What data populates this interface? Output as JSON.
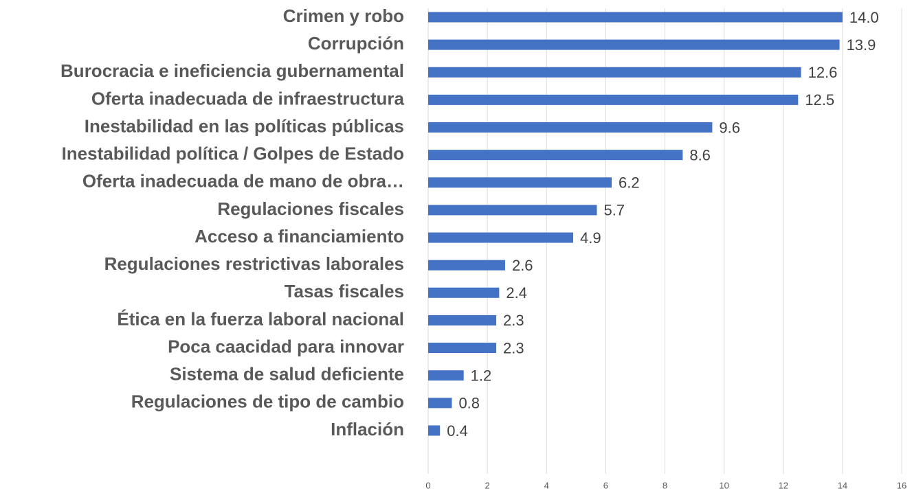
{
  "chart_data": {
    "type": "bar",
    "orientation": "horizontal",
    "categories": [
      "Crimen y robo",
      "Corrupción",
      "Burocracia e ineficiencia gubernamental",
      "Oferta inadecuada de infraestructura",
      "Inestabilidad en las políticas públicas",
      "Inestabilidad política / Golpes de Estado",
      "Oferta inadecuada de mano de obra…",
      "Regulaciones fiscales",
      "Acceso a financiamiento",
      "Regulaciones restrictivas laborales",
      "Tasas fiscales",
      "Ética en la fuerza laboral nacional",
      "Poca caacidad para innovar",
      "Sistema de salud deficiente",
      "Regulaciones de tipo de cambio",
      "Inflación"
    ],
    "values": [
      14.0,
      13.9,
      12.6,
      12.5,
      9.6,
      8.6,
      6.2,
      5.7,
      4.9,
      2.6,
      2.4,
      2.3,
      2.3,
      1.2,
      0.8,
      0.4
    ],
    "value_labels": [
      "14.0",
      "13.9",
      "12.6",
      "12.5",
      "9.6",
      "8.6",
      "6.2",
      "5.7",
      "4.9",
      "2.6",
      "2.4",
      "2.3",
      "2.3",
      "1.2",
      "0.8",
      "0.4"
    ],
    "color": "#4472c4",
    "xlim": [
      0,
      16
    ],
    "xticks": [
      0,
      2,
      4,
      6,
      8,
      10,
      12,
      14,
      16
    ],
    "grid": true
  }
}
